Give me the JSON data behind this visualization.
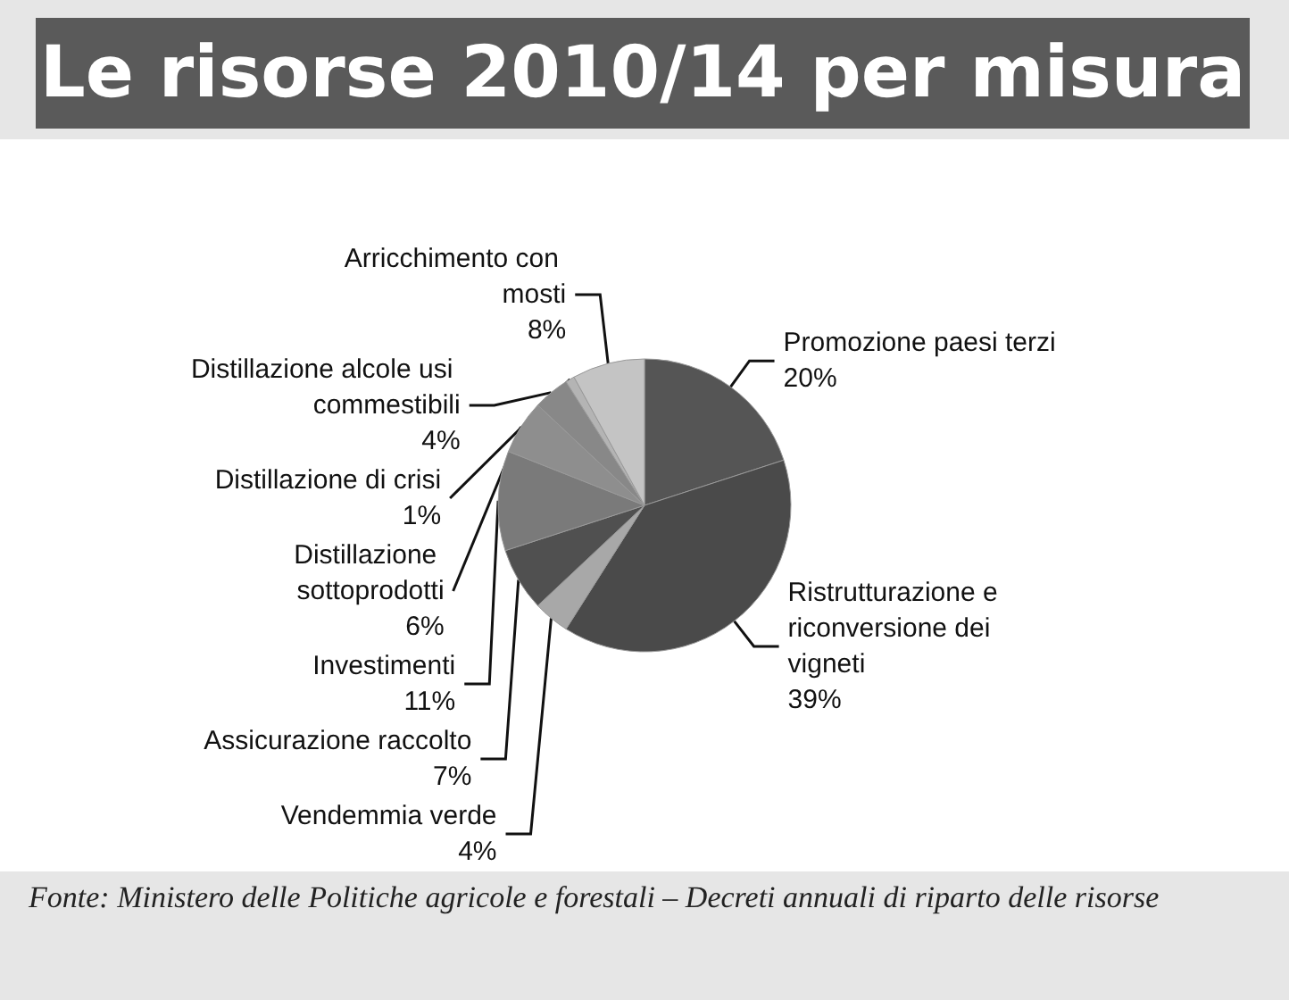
{
  "chart_data": {
    "type": "pie",
    "title": "Le risorse 2010/14 per misura",
    "categories": [
      "Promozione paesi terzi",
      "Ristrutturazione e riconversione dei vigneti",
      "Vendemmia verde",
      "Assicurazione raccolto",
      "Investimenti",
      "Distillazione sottoprodotti",
      "Distillazione alcole usi commestibili",
      "Distillazione di crisi",
      "Arricchimento con mosti"
    ],
    "values": [
      20,
      39,
      4,
      7,
      11,
      6,
      4,
      1,
      8
    ],
    "value_labels": [
      "20%",
      "39%",
      "4%",
      "7%",
      "11%",
      "6%",
      "4%",
      "1%",
      "8%"
    ],
    "colors": [
      "#555555",
      "#4a4a4a",
      "#a8a8a8",
      "#505050",
      "#7a7a7a",
      "#8e8e8e",
      "#888888",
      "#b4b4b4",
      "#c4c4c4"
    ],
    "annotations": [
      "Fonte: Ministero delle Politiche agricole e forestali – Decreti annuali di riparto delle risorse"
    ]
  }
}
